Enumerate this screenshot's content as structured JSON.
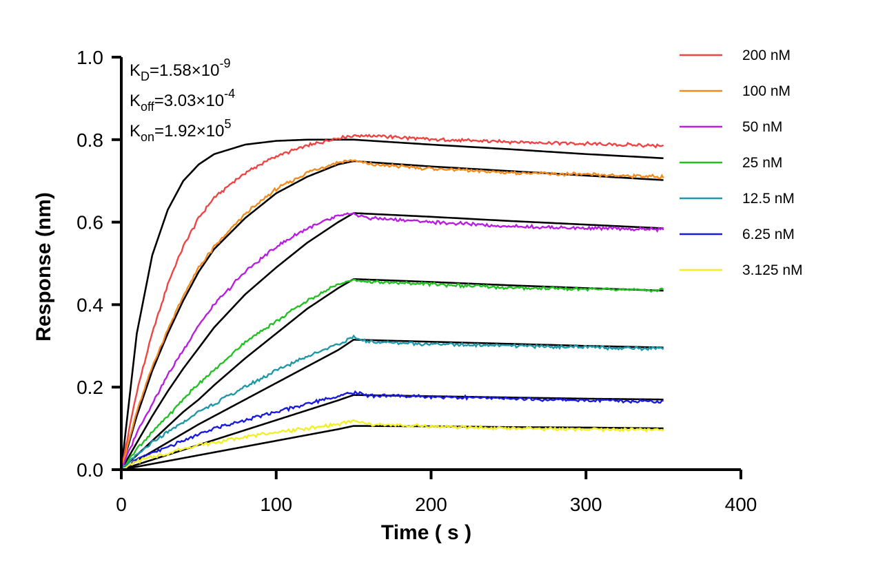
{
  "chart_data": {
    "type": "line",
    "xlabel": "Time ( s )",
    "ylabel": "Response (nm)",
    "xlim": [
      0,
      400
    ],
    "ylim": [
      0,
      1.0
    ],
    "x_ticks": [
      "0",
      "100",
      "200",
      "300",
      "400"
    ],
    "y_ticks": [
      "0.0",
      "0.2",
      "0.4",
      "0.6",
      "0.8",
      "1.0"
    ],
    "grid": false,
    "legend_placement": "top-right",
    "annotations": {
      "kd": {
        "base": "K",
        "sub": "D",
        "value": "=1.58×10",
        "exp": "-9"
      },
      "koff": {
        "base": "K",
        "sub": "off",
        "value": "=3.03×10",
        "exp": "-4"
      },
      "kon": {
        "base": "K",
        "sub": "on",
        "value": "=1.92×10",
        "exp": "5"
      }
    },
    "fit_color": "#000000",
    "series": [
      {
        "name": "200 nM",
        "color": "#EE4444",
        "x": [
          0,
          10,
          20,
          30,
          40,
          50,
          60,
          80,
          100,
          120,
          140,
          150,
          160,
          200,
          250,
          300,
          350
        ],
        "y": [
          0,
          0.19,
          0.33,
          0.45,
          0.54,
          0.61,
          0.66,
          0.72,
          0.76,
          0.785,
          0.805,
          0.81,
          0.81,
          0.8,
          0.795,
          0.79,
          0.785
        ]
      },
      {
        "name": "100 nM",
        "color": "#F28A1E",
        "x": [
          0,
          10,
          20,
          30,
          40,
          50,
          60,
          80,
          100,
          120,
          140,
          150,
          160,
          200,
          250,
          300,
          350
        ],
        "y": [
          0,
          0.14,
          0.25,
          0.34,
          0.42,
          0.49,
          0.54,
          0.62,
          0.68,
          0.72,
          0.745,
          0.75,
          0.74,
          0.73,
          0.72,
          0.715,
          0.71
        ]
      },
      {
        "name": "50 nM",
        "color": "#B81EE0",
        "x": [
          0,
          10,
          20,
          30,
          40,
          50,
          60,
          80,
          100,
          120,
          140,
          150,
          160,
          200,
          250,
          300,
          350
        ],
        "y": [
          0,
          0.09,
          0.16,
          0.23,
          0.29,
          0.35,
          0.4,
          0.48,
          0.54,
          0.585,
          0.615,
          0.62,
          0.61,
          0.6,
          0.59,
          0.585,
          0.582
        ]
      },
      {
        "name": "25 nM",
        "color": "#22C022",
        "x": [
          0,
          10,
          20,
          30,
          40,
          50,
          60,
          80,
          100,
          120,
          140,
          150,
          160,
          200,
          250,
          300,
          350
        ],
        "y": [
          0,
          0.05,
          0.09,
          0.13,
          0.17,
          0.21,
          0.24,
          0.31,
          0.36,
          0.41,
          0.45,
          0.46,
          0.455,
          0.45,
          0.44,
          0.438,
          0.435
        ]
      },
      {
        "name": "12.5 nM",
        "color": "#2097A8",
        "x": [
          0,
          10,
          20,
          30,
          40,
          50,
          60,
          80,
          100,
          120,
          140,
          150,
          160,
          200,
          250,
          300,
          350
        ],
        "y": [
          0,
          0.035,
          0.065,
          0.09,
          0.115,
          0.14,
          0.16,
          0.2,
          0.24,
          0.275,
          0.305,
          0.32,
          0.31,
          0.305,
          0.3,
          0.297,
          0.293
        ]
      },
      {
        "name": "6.25 nM",
        "color": "#1A1ADF",
        "x": [
          0,
          10,
          20,
          30,
          40,
          50,
          60,
          80,
          100,
          120,
          140,
          150,
          160,
          200,
          250,
          300,
          350
        ],
        "y": [
          0,
          0.025,
          0.04,
          0.055,
          0.07,
          0.085,
          0.1,
          0.12,
          0.14,
          0.16,
          0.178,
          0.187,
          0.18,
          0.177,
          0.172,
          0.168,
          0.166
        ]
      },
      {
        "name": "3.125 nM",
        "color": "#F2EE2A",
        "x": [
          0,
          10,
          20,
          30,
          40,
          50,
          60,
          80,
          100,
          120,
          140,
          150,
          160,
          200,
          250,
          300,
          350
        ],
        "y": [
          0,
          0.02,
          0.03,
          0.04,
          0.05,
          0.06,
          0.065,
          0.08,
          0.09,
          0.1,
          0.11,
          0.118,
          0.11,
          0.105,
          0.1,
          0.098,
          0.096
        ]
      }
    ],
    "fits": [
      {
        "x": [
          0,
          10,
          20,
          30,
          40,
          50,
          60,
          80,
          100,
          120,
          140,
          150,
          200,
          250,
          300,
          350
        ],
        "y": [
          0,
          0.33,
          0.52,
          0.63,
          0.7,
          0.74,
          0.765,
          0.788,
          0.797,
          0.8,
          0.8,
          0.8,
          0.788,
          0.777,
          0.765,
          0.755
        ]
      },
      {
        "x": [
          0,
          10,
          20,
          30,
          40,
          50,
          60,
          80,
          100,
          120,
          140,
          150,
          200,
          250,
          300,
          350
        ],
        "y": [
          0,
          0.13,
          0.24,
          0.33,
          0.41,
          0.48,
          0.535,
          0.61,
          0.67,
          0.71,
          0.74,
          0.748,
          0.735,
          0.724,
          0.713,
          0.702
        ]
      },
      {
        "x": [
          0,
          10,
          20,
          30,
          40,
          50,
          60,
          80,
          100,
          120,
          140,
          150,
          200,
          250,
          300,
          350
        ],
        "y": [
          0,
          0.065,
          0.13,
          0.19,
          0.245,
          0.295,
          0.345,
          0.425,
          0.49,
          0.55,
          0.6,
          0.622,
          0.613,
          0.603,
          0.594,
          0.585
        ]
      },
      {
        "x": [
          0,
          10,
          20,
          30,
          40,
          50,
          60,
          80,
          100,
          120,
          140,
          150,
          200,
          250,
          300,
          350
        ],
        "y": [
          0,
          0.035,
          0.07,
          0.105,
          0.14,
          0.17,
          0.205,
          0.27,
          0.33,
          0.39,
          0.44,
          0.462,
          0.455,
          0.447,
          0.44,
          0.434
        ]
      },
      {
        "x": [
          0,
          10,
          20,
          30,
          40,
          50,
          60,
          80,
          100,
          120,
          140,
          150,
          200,
          250,
          300,
          350
        ],
        "y": [
          0,
          0.022,
          0.044,
          0.066,
          0.088,
          0.11,
          0.13,
          0.17,
          0.21,
          0.25,
          0.29,
          0.315,
          0.31,
          0.305,
          0.3,
          0.296
        ]
      },
      {
        "x": [
          0,
          10,
          20,
          30,
          40,
          50,
          60,
          80,
          100,
          120,
          140,
          150,
          200,
          250,
          300,
          350
        ],
        "y": [
          0,
          0.012,
          0.024,
          0.036,
          0.048,
          0.06,
          0.072,
          0.096,
          0.12,
          0.144,
          0.168,
          0.181,
          0.178,
          0.175,
          0.172,
          0.17
        ]
      },
      {
        "x": [
          0,
          10,
          20,
          30,
          40,
          50,
          60,
          80,
          100,
          120,
          140,
          150,
          200,
          250,
          300,
          350
        ],
        "y": [
          0,
          0.007,
          0.014,
          0.021,
          0.028,
          0.035,
          0.042,
          0.056,
          0.07,
          0.084,
          0.098,
          0.106,
          0.105,
          0.103,
          0.102,
          0.1
        ]
      }
    ]
  }
}
